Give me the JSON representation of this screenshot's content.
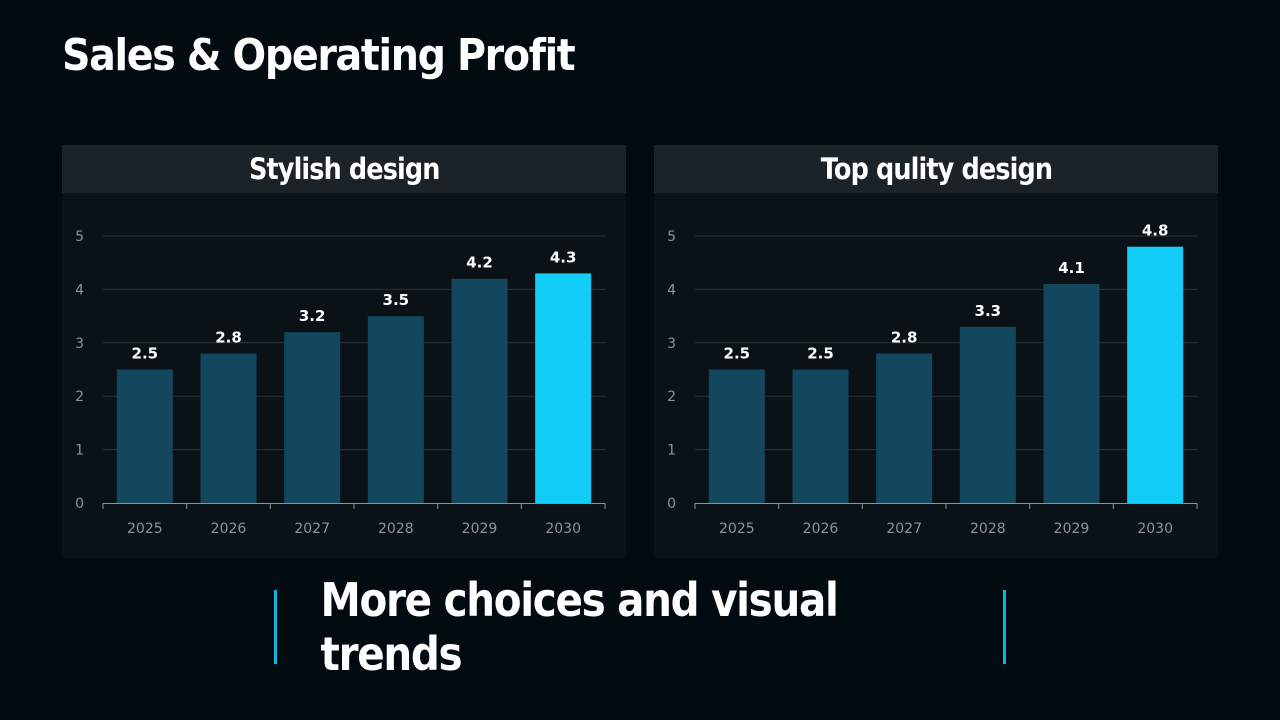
{
  "title": "Sales & Operating Profit",
  "footer": "More choices and visual trends",
  "colors": {
    "bar": "#12475e",
    "highlight": "#12cdf7",
    "grid": "#2a3438",
    "tick": "#8a949a"
  },
  "chart_data": [
    {
      "type": "bar",
      "title": "Stylish design",
      "categories": [
        "2025",
        "2026",
        "2027",
        "2028",
        "2029",
        "2030"
      ],
      "values": [
        2.5,
        2.8,
        3.2,
        3.5,
        4.2,
        4.3
      ],
      "ylim": [
        0,
        5
      ],
      "yticks": [
        "0",
        "1",
        "2",
        "3",
        "4",
        "5"
      ],
      "highlight_index": 5,
      "grid": true,
      "legend": "none"
    },
    {
      "type": "bar",
      "title": "Top qulity design",
      "categories": [
        "2025",
        "2026",
        "2027",
        "2028",
        "2029",
        "2030"
      ],
      "values": [
        2.5,
        2.5,
        2.8,
        3.3,
        4.1,
        4.8
      ],
      "ylim": [
        0,
        5
      ],
      "yticks": [
        "0",
        "1",
        "2",
        "3",
        "4",
        "5"
      ],
      "highlight_index": 5,
      "grid": true,
      "legend": "none"
    }
  ]
}
